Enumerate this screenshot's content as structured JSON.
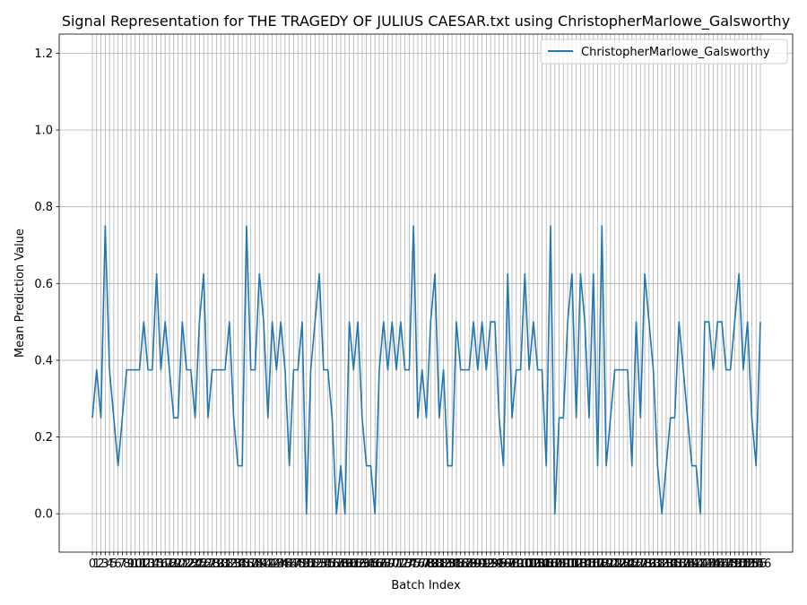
{
  "chart_data": {
    "type": "line",
    "title": "Signal Representation for THE TRAGEDY OF JULIUS CAESAR.txt using ChristopherMarlowe_Galsworthy",
    "xlabel": "Batch Index",
    "ylabel": "Mean Prediction Value",
    "ylim": [
      -0.1,
      1.25
    ],
    "yticks": [
      0.0,
      0.2,
      0.4,
      0.6,
      0.8,
      1.0,
      1.2
    ],
    "grid": true,
    "legend_position": "top-right",
    "series": [
      {
        "name": "ChristopherMarlowe_Galsworthy",
        "color": "#1f77b4",
        "values": [
          0.25,
          0.375,
          0.25,
          0.75,
          0.375,
          0.25,
          0.125,
          0.25,
          0.375,
          0.375,
          0.375,
          0.375,
          0.5,
          0.375,
          0.375,
          0.625,
          0.375,
          0.5,
          0.375,
          0.25,
          0.25,
          0.5,
          0.375,
          0.375,
          0.25,
          0.5,
          0.625,
          0.25,
          0.375,
          0.375,
          0.375,
          0.375,
          0.5,
          0.25,
          0.125,
          0.125,
          0.75,
          0.375,
          0.375,
          0.625,
          0.5,
          0.25,
          0.5,
          0.375,
          0.5,
          0.375,
          0.125,
          0.375,
          0.375,
          0.5,
          0.0,
          0.375,
          0.5,
          0.625,
          0.375,
          0.375,
          0.25,
          0.0,
          0.125,
          0.0,
          0.5,
          0.375,
          0.5,
          0.25,
          0.125,
          0.125,
          0.0,
          0.375,
          0.5,
          0.375,
          0.5,
          0.375,
          0.5,
          0.375,
          0.375,
          0.75,
          0.25,
          0.375,
          0.25,
          0.5,
          0.625,
          0.25,
          0.375,
          0.125,
          0.125,
          0.5,
          0.375,
          0.375,
          0.375,
          0.5,
          0.375,
          0.5,
          0.375,
          0.5,
          0.5,
          0.25,
          0.125,
          0.625,
          0.25,
          0.375,
          0.375,
          0.625,
          0.375,
          0.5,
          0.375,
          0.375,
          0.125,
          0.75,
          0.0,
          0.25,
          0.25,
          0.5,
          0.625,
          0.25,
          0.625,
          0.5,
          0.25,
          0.625,
          0.125,
          0.75,
          0.125,
          0.25,
          0.375,
          0.375,
          0.375,
          0.375,
          0.125,
          0.5,
          0.25,
          0.625,
          0.5,
          0.375,
          0.125,
          0.0,
          0.125,
          0.25,
          0.25,
          0.5,
          0.375,
          0.25,
          0.125,
          0.125,
          0.0,
          0.5,
          0.5,
          0.375,
          0.5,
          0.5,
          0.375,
          0.375,
          0.5,
          0.625,
          0.375,
          0.5,
          0.25,
          0.125,
          0.5
        ]
      }
    ]
  }
}
